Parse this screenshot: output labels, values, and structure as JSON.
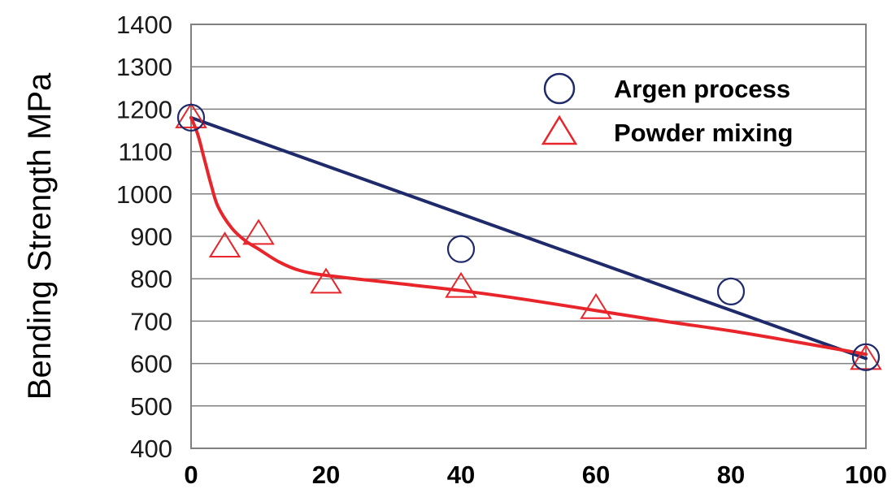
{
  "chart_data": {
    "type": "scatter",
    "title": "",
    "xlabel": "",
    "ylabel": "Bending Strength  MPa",
    "xlim": [
      0,
      100
    ],
    "ylim": [
      400,
      1400
    ],
    "x_ticks": [
      0,
      20,
      40,
      60,
      80,
      100
    ],
    "y_ticks": [
      400,
      500,
      600,
      700,
      800,
      900,
      1000,
      1100,
      1200,
      1300,
      1400
    ],
    "grid": "horizontal",
    "legend_position": "top-right",
    "series": [
      {
        "name": "Argen process",
        "marker": "circle",
        "color": "#1f2a6b",
        "points": [
          {
            "x": 0,
            "y": 1180
          },
          {
            "x": 40,
            "y": 870
          },
          {
            "x": 80,
            "y": 770
          },
          {
            "x": 100,
            "y": 615
          }
        ],
        "trend": [
          {
            "x": 0,
            "y": 1180
          },
          {
            "x": 100,
            "y": 612
          }
        ]
      },
      {
        "name": "Powder mixing",
        "marker": "triangle",
        "color": "#e8252a",
        "points": [
          {
            "x": 0,
            "y": 1180
          },
          {
            "x": 5,
            "y": 875
          },
          {
            "x": 10,
            "y": 905
          },
          {
            "x": 20,
            "y": 790
          },
          {
            "x": 40,
            "y": 780
          },
          {
            "x": 60,
            "y": 730
          },
          {
            "x": 100,
            "y": 610
          }
        ],
        "trend": [
          {
            "x": 0,
            "y": 1180
          },
          {
            "x": 1,
            "y": 1140
          },
          {
            "x": 2,
            "y": 1080
          },
          {
            "x": 3,
            "y": 1020
          },
          {
            "x": 4,
            "y": 970
          },
          {
            "x": 6,
            "y": 920
          },
          {
            "x": 8,
            "y": 890
          },
          {
            "x": 10,
            "y": 870
          },
          {
            "x": 13,
            "y": 840
          },
          {
            "x": 16,
            "y": 820
          },
          {
            "x": 20,
            "y": 808
          },
          {
            "x": 30,
            "y": 790
          },
          {
            "x": 40,
            "y": 772
          },
          {
            "x": 50,
            "y": 750
          },
          {
            "x": 60,
            "y": 725
          },
          {
            "x": 70,
            "y": 700
          },
          {
            "x": 80,
            "y": 677
          },
          {
            "x": 90,
            "y": 650
          },
          {
            "x": 100,
            "y": 622
          }
        ]
      }
    ]
  }
}
